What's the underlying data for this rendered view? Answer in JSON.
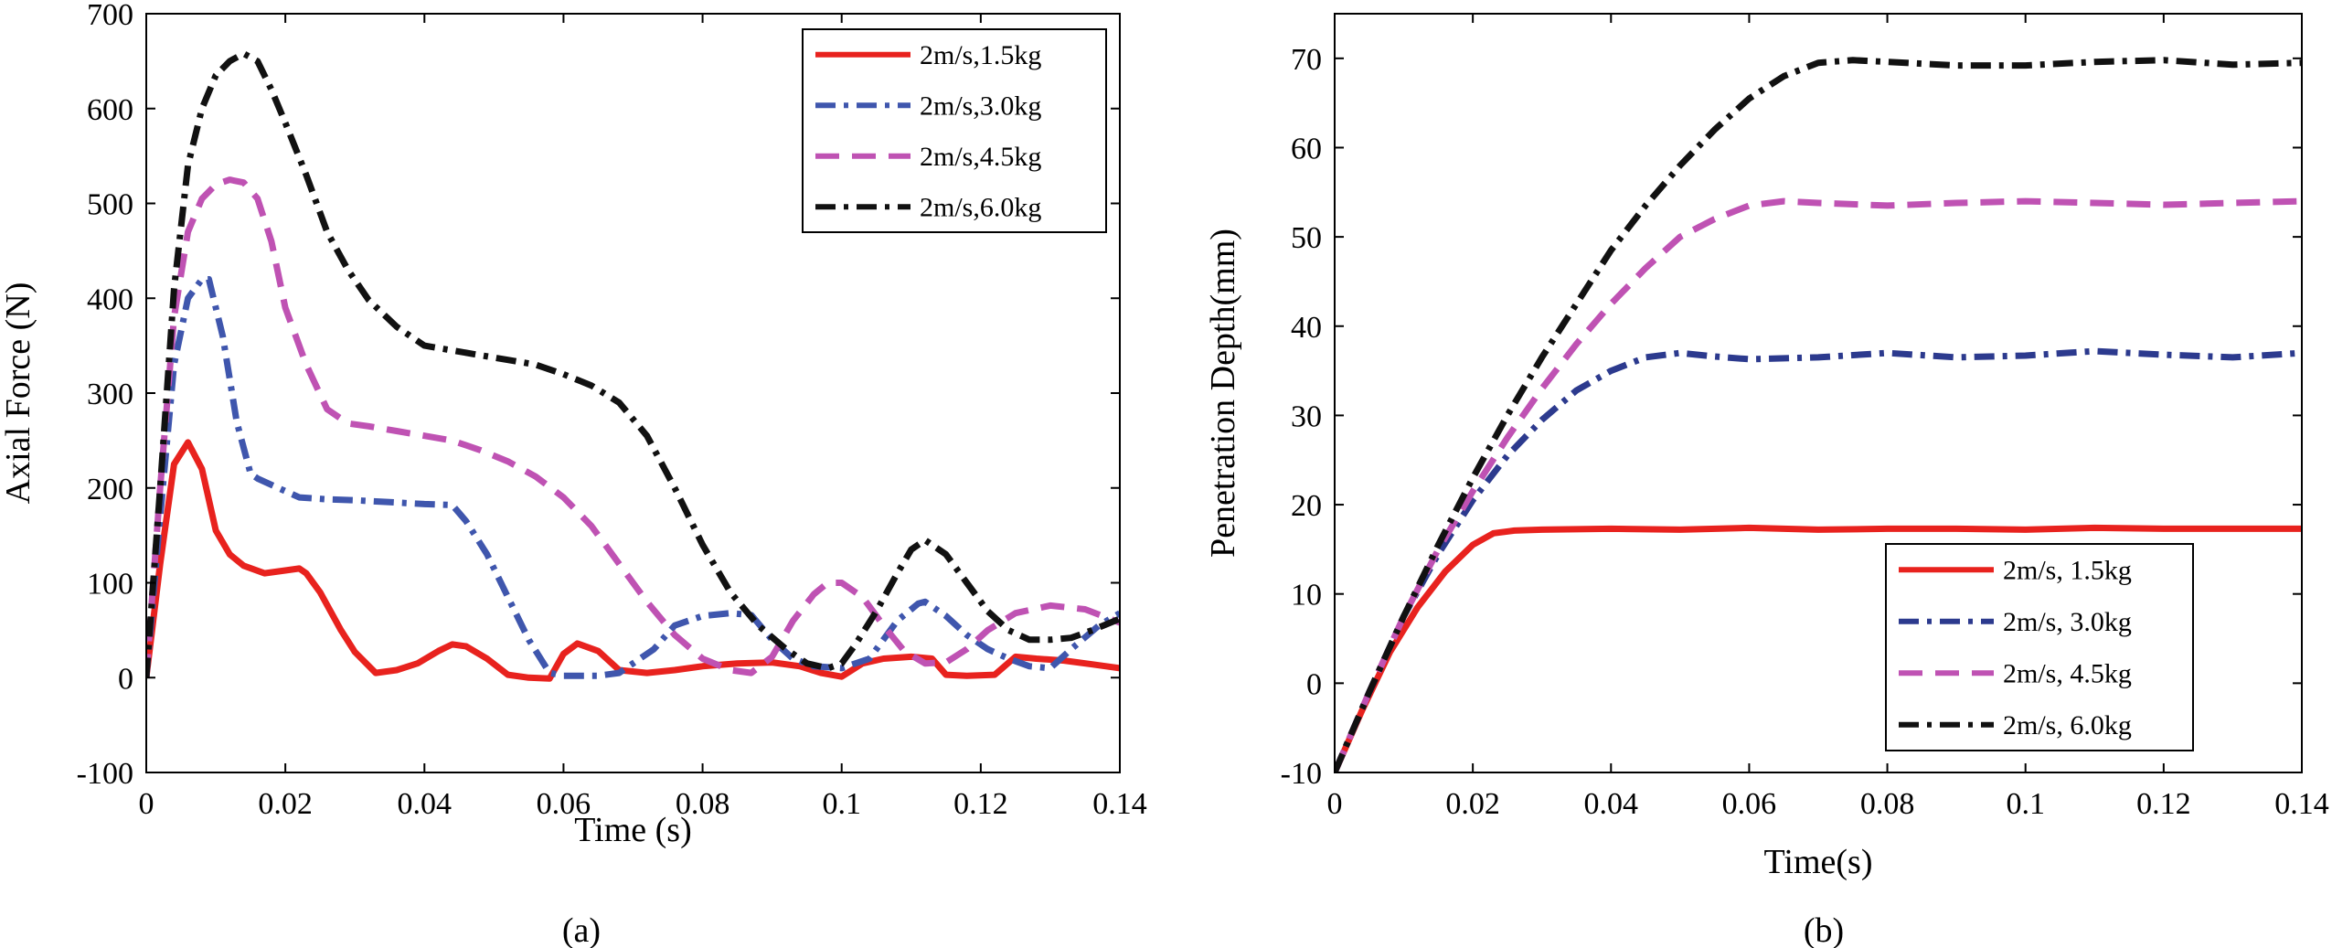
{
  "figure": {
    "caption_a": "(a)",
    "caption_b": "(b)"
  },
  "chart_data": [
    {
      "type": "line",
      "id": "a",
      "title": "",
      "xlabel": "Time (s)",
      "ylabel": "Axial Force (N)",
      "xlim": [
        0,
        0.14
      ],
      "ylim": [
        -100,
        700
      ],
      "xticks": [
        0,
        0.02,
        0.04,
        0.06,
        0.08,
        0.1,
        0.12,
        0.14
      ],
      "xtick_labels": [
        "0",
        "0.02",
        "0.04",
        "0.06",
        "0.08",
        "0.1",
        "0.12",
        "0.14"
      ],
      "yticks": [
        -100,
        0,
        100,
        200,
        300,
        400,
        500,
        600,
        700
      ],
      "ytick_labels": [
        "-100",
        "0",
        "100",
        "200",
        "300",
        "400",
        "500",
        "600",
        "700"
      ],
      "grid": false,
      "legend_position": "top-right",
      "series": [
        {
          "name": "2m/s,1.5kg",
          "color": "#e8221e",
          "style": "solid",
          "x": [
            0,
            0.002,
            0.004,
            0.006,
            0.008,
            0.01,
            0.012,
            0.014,
            0.017,
            0.02,
            0.022,
            0.023,
            0.025,
            0.028,
            0.03,
            0.033,
            0.036,
            0.039,
            0.042,
            0.044,
            0.046,
            0.049,
            0.052,
            0.055,
            0.058,
            0.06,
            0.062,
            0.065,
            0.068,
            0.072,
            0.076,
            0.08,
            0.085,
            0.09,
            0.094,
            0.097,
            0.1,
            0.103,
            0.106,
            0.11,
            0.113,
            0.115,
            0.118,
            0.122,
            0.125,
            0.128,
            0.132,
            0.136,
            0.14
          ],
          "y": [
            0,
            120,
            225,
            248,
            220,
            155,
            130,
            118,
            110,
            113,
            115,
            110,
            90,
            50,
            27,
            5,
            8,
            15,
            28,
            35,
            33,
            20,
            3,
            0,
            -1,
            25,
            36,
            28,
            8,
            5,
            8,
            12,
            15,
            16,
            12,
            5,
            1,
            15,
            20,
            22,
            20,
            3,
            2,
            3,
            22,
            20,
            18,
            14,
            10
          ]
        },
        {
          "name": "2m/s,3.0kg",
          "color": "#3f56ad",
          "style": "dashdot",
          "x": [
            0,
            0.002,
            0.004,
            0.006,
            0.008,
            0.009,
            0.011,
            0.013,
            0.015,
            0.016,
            0.019,
            0.022,
            0.026,
            0.03,
            0.035,
            0.04,
            0.044,
            0.046,
            0.049,
            0.052,
            0.055,
            0.058,
            0.06,
            0.062,
            0.065,
            0.068,
            0.07,
            0.073,
            0.076,
            0.08,
            0.084,
            0.087,
            0.09,
            0.093,
            0.096,
            0.1,
            0.104,
            0.108,
            0.111,
            0.112,
            0.115,
            0.118,
            0.121,
            0.124,
            0.127,
            0.13,
            0.133,
            0.137,
            0.14
          ],
          "y": [
            0,
            170,
            330,
            400,
            420,
            420,
            360,
            270,
            215,
            210,
            200,
            190,
            188,
            187,
            185,
            183,
            182,
            165,
            130,
            85,
            40,
            5,
            2,
            2,
            2,
            5,
            15,
            30,
            55,
            65,
            68,
            66,
            40,
            20,
            12,
            10,
            20,
            60,
            78,
            80,
            65,
            45,
            30,
            20,
            12,
            10,
            30,
            55,
            68
          ]
        },
        {
          "name": "2m/s,4.5kg",
          "color": "#bf52b3",
          "style": "dashed",
          "x": [
            0,
            0.002,
            0.004,
            0.006,
            0.008,
            0.01,
            0.012,
            0.014,
            0.016,
            0.018,
            0.02,
            0.023,
            0.026,
            0.029,
            0.032,
            0.036,
            0.04,
            0.044,
            0.048,
            0.052,
            0.056,
            0.06,
            0.064,
            0.068,
            0.072,
            0.076,
            0.08,
            0.084,
            0.087,
            0.09,
            0.093,
            0.096,
            0.098,
            0.1,
            0.103,
            0.106,
            0.109,
            0.112,
            0.115,
            0.118,
            0.121,
            0.125,
            0.13,
            0.135,
            0.14
          ],
          "y": [
            0,
            200,
            380,
            470,
            505,
            520,
            525,
            522,
            505,
            460,
            390,
            330,
            283,
            268,
            265,
            260,
            255,
            250,
            240,
            228,
            212,
            190,
            160,
            120,
            80,
            45,
            20,
            8,
            5,
            22,
            60,
            88,
            100,
            100,
            85,
            55,
            28,
            15,
            16,
            30,
            50,
            68,
            76,
            72,
            58
          ]
        },
        {
          "name": "2m/s,6.0kg",
          "color": "#111111",
          "style": "dashdot",
          "x": [
            0,
            0.002,
            0.004,
            0.006,
            0.008,
            0.01,
            0.012,
            0.014,
            0.016,
            0.018,
            0.02,
            0.023,
            0.026,
            0.029,
            0.032,
            0.036,
            0.04,
            0.044,
            0.048,
            0.052,
            0.056,
            0.06,
            0.064,
            0.068,
            0.072,
            0.076,
            0.08,
            0.084,
            0.088,
            0.092,
            0.095,
            0.098,
            0.1,
            0.102,
            0.105,
            0.108,
            0.11,
            0.112,
            0.115,
            0.118,
            0.121,
            0.124,
            0.127,
            0.13,
            0.133,
            0.136,
            0.14
          ],
          "y": [
            0,
            200,
            410,
            540,
            600,
            635,
            650,
            658,
            650,
            620,
            585,
            530,
            470,
            430,
            398,
            370,
            350,
            345,
            340,
            335,
            330,
            320,
            308,
            290,
            255,
            200,
            140,
            90,
            55,
            30,
            15,
            10,
            15,
            35,
            70,
            110,
            135,
            145,
            130,
            100,
            70,
            50,
            40,
            40,
            42,
            50,
            62
          ]
        }
      ]
    },
    {
      "type": "line",
      "id": "b",
      "title": "",
      "xlabel": "Time(s)",
      "ylabel": "Penetration Depth(mm)",
      "xlim": [
        0,
        0.14
      ],
      "ylim": [
        -10,
        75
      ],
      "xticks": [
        0,
        0.02,
        0.04,
        0.06,
        0.08,
        0.1,
        0.12,
        0.14
      ],
      "xtick_labels": [
        "0",
        "0.02",
        "0.04",
        "0.06",
        "0.08",
        "0.1",
        "0.12",
        "0.14"
      ],
      "yticks": [
        -10,
        0,
        10,
        20,
        30,
        40,
        50,
        60,
        70
      ],
      "ytick_labels": [
        "-10",
        "0",
        "10",
        "20",
        "30",
        "40",
        "50",
        "60",
        "70"
      ],
      "grid": false,
      "legend_position": "bottom-right",
      "series": [
        {
          "name": "2m/s, 1.5kg",
          "color": "#e8221e",
          "style": "solid",
          "x": [
            0,
            0.004,
            0.008,
            0.012,
            0.016,
            0.02,
            0.023,
            0.026,
            0.03,
            0.04,
            0.05,
            0.06,
            0.07,
            0.08,
            0.09,
            0.1,
            0.11,
            0.12,
            0.13,
            0.14
          ],
          "y": [
            -10,
            -3,
            3.5,
            8.5,
            12.5,
            15.5,
            16.8,
            17.1,
            17.2,
            17.3,
            17.2,
            17.4,
            17.2,
            17.3,
            17.3,
            17.2,
            17.4,
            17.3,
            17.3,
            17.3
          ]
        },
        {
          "name": "2m/s, 3.0kg",
          "color": "#2c3a8e",
          "style": "dashdot",
          "x": [
            0,
            0.005,
            0.01,
            0.015,
            0.02,
            0.025,
            0.03,
            0.035,
            0.04,
            0.045,
            0.05,
            0.055,
            0.06,
            0.07,
            0.08,
            0.09,
            0.1,
            0.11,
            0.12,
            0.13,
            0.14
          ],
          "y": [
            -10,
            -1,
            7.5,
            14.5,
            20.5,
            25.5,
            29.5,
            32.8,
            35,
            36.5,
            37,
            36.6,
            36.3,
            36.5,
            37,
            36.5,
            36.7,
            37.2,
            36.8,
            36.5,
            37
          ]
        },
        {
          "name": "2m/s, 4.5kg",
          "color": "#bf52b3",
          "style": "dashed",
          "x": [
            0,
            0.005,
            0.01,
            0.015,
            0.02,
            0.025,
            0.03,
            0.035,
            0.04,
            0.045,
            0.05,
            0.055,
            0.06,
            0.065,
            0.07,
            0.08,
            0.09,
            0.1,
            0.11,
            0.12,
            0.13,
            0.14
          ],
          "y": [
            -10,
            -1,
            7.5,
            15,
            21.5,
            27.5,
            33,
            38,
            42.5,
            46.5,
            50,
            52,
            53.5,
            54,
            53.8,
            53.5,
            53.8,
            54,
            53.8,
            53.6,
            53.8,
            54
          ]
        },
        {
          "name": "2m/s, 6.0kg",
          "color": "#111111",
          "style": "dashdot",
          "x": [
            0,
            0.005,
            0.01,
            0.015,
            0.02,
            0.025,
            0.03,
            0.035,
            0.04,
            0.045,
            0.05,
            0.055,
            0.06,
            0.065,
            0.07,
            0.075,
            0.08,
            0.09,
            0.1,
            0.11,
            0.12,
            0.13,
            0.14
          ],
          "y": [
            -10,
            -1,
            7.5,
            15.5,
            23,
            30,
            36.5,
            42.5,
            48.5,
            53.5,
            58,
            62,
            65.5,
            68,
            69.5,
            69.8,
            69.6,
            69.2,
            69.2,
            69.6,
            69.8,
            69.3,
            69.5
          ]
        }
      ]
    }
  ]
}
